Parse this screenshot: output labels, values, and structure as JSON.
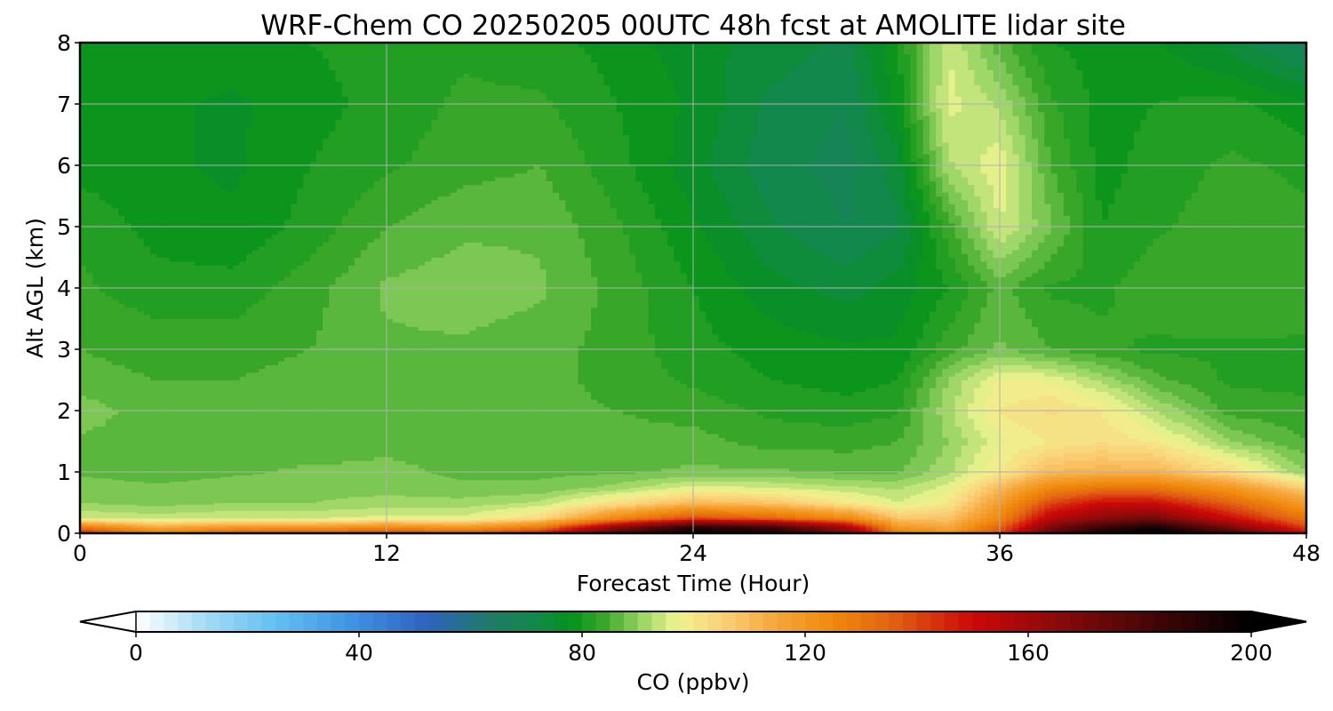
{
  "chart_data": {
    "type": "heatmap",
    "title": "WRF-Chem CO  20250205 00UTC 48h fcst at AMOLITE lidar site",
    "xlabel": "Forecast Time (Hour)",
    "ylabel": "Alt AGL (km)",
    "xlim": [
      0,
      48
    ],
    "ylim": [
      0,
      8
    ],
    "x_ticks": [
      0,
      12,
      24,
      36,
      48
    ],
    "y_ticks": [
      0,
      1,
      2,
      3,
      4,
      5,
      6,
      7,
      8
    ],
    "grid": true,
    "colorbar": {
      "label": "CO  (ppbv)",
      "range": [
        0,
        200
      ],
      "ticks": [
        0,
        40,
        80,
        120,
        160,
        200
      ],
      "extend": "both",
      "under_color": "#ffffff",
      "over_color": "#000000",
      "colormap_stops": [
        {
          "v": 0,
          "c": "#ffffff"
        },
        {
          "v": 12,
          "c": "#a6dcf5"
        },
        {
          "v": 25,
          "c": "#62c0f2"
        },
        {
          "v": 40,
          "c": "#3d8ee0"
        },
        {
          "v": 52,
          "c": "#2f62c0"
        },
        {
          "v": 63,
          "c": "#1f7a6a"
        },
        {
          "v": 72,
          "c": "#12894a"
        },
        {
          "v": 78,
          "c": "#05921a"
        },
        {
          "v": 84,
          "c": "#3aa82a"
        },
        {
          "v": 90,
          "c": "#8fd060"
        },
        {
          "v": 97,
          "c": "#eef590"
        },
        {
          "v": 105,
          "c": "#fbd27a"
        },
        {
          "v": 115,
          "c": "#f5a53a"
        },
        {
          "v": 125,
          "c": "#f08a0a"
        },
        {
          "v": 135,
          "c": "#e26512"
        },
        {
          "v": 150,
          "c": "#cc0808"
        },
        {
          "v": 165,
          "c": "#8a0a0a"
        },
        {
          "v": 185,
          "c": "#3a0505"
        },
        {
          "v": 200,
          "c": "#000000"
        }
      ]
    },
    "field": {
      "x": [
        0,
        3,
        6,
        9,
        12,
        15,
        18,
        21,
        24,
        27,
        30,
        32,
        34,
        36,
        38,
        40,
        42,
        45,
        48
      ],
      "y": [
        0,
        0.1,
        0.25,
        0.5,
        0.75,
        1,
        1.5,
        2,
        2.5,
        3,
        4,
        5,
        6,
        7,
        8
      ],
      "values": [
        [
          150,
          130,
          140,
          140,
          145,
          140,
          150,
          180,
          200,
          195,
          170,
          130,
          125,
          140,
          175,
          195,
          205,
          185,
          150
        ],
        [
          130,
          115,
          120,
          120,
          125,
          120,
          130,
          165,
          190,
          185,
          160,
          120,
          115,
          135,
          170,
          185,
          195,
          170,
          140
        ],
        [
          95,
          94,
          95,
          95,
          96,
          96,
          103,
          125,
          140,
          135,
          125,
          108,
          108,
          125,
          155,
          165,
          170,
          150,
          130
        ],
        [
          90,
          89,
          90,
          90,
          91,
          91,
          93,
          102,
          110,
          108,
          100,
          95,
          100,
          118,
          140,
          150,
          150,
          135,
          118
        ],
        [
          89,
          88,
          89,
          89,
          89,
          88,
          88,
          91,
          96,
          95,
          93,
          92,
          96,
          110,
          125,
          130,
          130,
          120,
          105
        ],
        [
          87,
          86,
          87,
          88,
          88,
          87,
          87,
          87,
          88,
          88,
          87,
          87,
          92,
          100,
          110,
          112,
          112,
          103,
          90
        ],
        [
          87,
          86,
          85,
          86,
          87,
          87,
          86,
          86,
          86,
          84,
          84,
          85,
          90,
          97,
          100,
          102,
          100,
          90,
          85
        ],
        [
          89,
          86,
          85,
          86,
          87,
          87,
          86,
          85,
          84,
          82,
          81,
          82,
          92,
          100,
          103,
          100,
          93,
          84,
          83
        ],
        [
          86,
          85,
          85,
          86,
          87,
          87,
          86,
          84,
          82,
          80,
          79,
          80,
          90,
          98,
          97,
          92,
          86,
          82,
          82
        ],
        [
          85,
          84,
          84,
          85,
          87,
          87,
          86,
          84,
          81,
          79,
          78,
          78,
          84,
          88,
          85,
          83,
          82,
          82,
          82
        ],
        [
          83,
          81,
          81,
          84,
          88,
          89,
          88,
          84,
          80,
          76,
          74,
          76,
          80,
          86,
          82,
          82,
          84,
          85,
          84
        ],
        [
          82,
          79,
          78,
          81,
          85,
          87,
          87,
          83,
          78,
          73,
          70,
          72,
          84,
          95,
          88,
          80,
          82,
          84,
          83
        ],
        [
          79,
          78,
          77,
          80,
          82,
          84,
          85,
          81,
          76,
          71,
          69,
          74,
          92,
          97,
          85,
          79,
          81,
          83,
          82
        ],
        [
          78,
          78,
          77,
          79,
          81,
          83,
          83,
          80,
          77,
          72,
          70,
          78,
          96,
          92,
          83,
          79,
          80,
          81,
          78
        ],
        [
          80,
          80,
          79,
          80,
          81,
          82,
          81,
          79,
          76,
          74,
          72,
          80,
          95,
          86,
          80,
          79,
          78,
          74,
          68
        ]
      ]
    }
  }
}
